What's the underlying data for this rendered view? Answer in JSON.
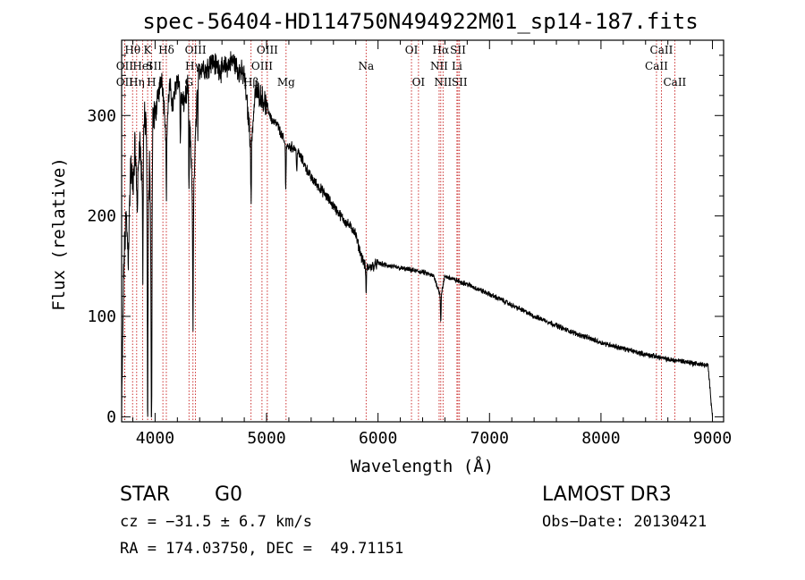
{
  "chart_data": {
    "type": "line",
    "title": "spec-56404-HD114750N494922M01_sp14-187.fits",
    "xlabel": "Wavelength (Å)",
    "ylabel": "Flux (relative)",
    "xlim": [
      3700,
      9100
    ],
    "ylim": [
      -5,
      375
    ],
    "xticks": [
      4000,
      5000,
      6000,
      7000,
      8000,
      9000
    ],
    "yticks": [
      0,
      100,
      200,
      300
    ],
    "xtick_labels": [
      "4000",
      "5000",
      "6000",
      "7000",
      "8000",
      "9000"
    ],
    "ytick_labels": [
      "0",
      "100",
      "200",
      "300"
    ],
    "series": [
      {
        "name": "spectrum",
        "anchors_x": [
          3700,
          3720,
          3740,
          3760,
          3780,
          3800,
          3820,
          3840,
          3860,
          3880,
          3900,
          3920,
          3933,
          3950,
          3968,
          3980,
          4000,
          4030,
          4060,
          4101,
          4130,
          4160,
          4200,
          4250,
          4300,
          4340,
          4380,
          4420,
          4460,
          4500,
          4550,
          4600,
          4650,
          4700,
          4750,
          4800,
          4861,
          4900,
          4950,
          5000,
          5050,
          5100,
          5172,
          5250,
          5300,
          5400,
          5500,
          5600,
          5700,
          5790,
          5850,
          5893,
          5950,
          6000,
          6100,
          6200,
          6300,
          6400,
          6500,
          6563,
          6600,
          6650,
          6700,
          6800,
          6900,
          7000,
          7100,
          7200,
          7300,
          7400,
          7500,
          7600,
          7700,
          7800,
          7900,
          8000,
          8100,
          8200,
          8300,
          8400,
          8500,
          8600,
          8700,
          8800,
          8900,
          8960,
          9000
        ],
        "anchors_y": [
          0,
          150,
          200,
          160,
          250,
          230,
          270,
          210,
          280,
          240,
          290,
          300,
          140,
          260,
          120,
          300,
          300,
          320,
          340,
          280,
          330,
          310,
          340,
          310,
          330,
          200,
          340,
          350,
          345,
          355,
          350,
          345,
          350,
          355,
          345,
          340,
          270,
          325,
          320,
          310,
          295,
          290,
          270,
          268,
          260,
          238,
          225,
          210,
          195,
          185,
          160,
          148,
          150,
          153,
          150,
          148,
          146,
          144,
          140,
          120,
          140,
          138,
          136,
          132,
          127,
          122,
          117,
          111,
          106,
          100,
          96,
          91,
          86,
          82,
          78,
          74,
          71,
          68,
          65,
          62,
          60,
          57,
          56,
          54,
          52,
          51,
          0
        ]
      }
    ],
    "line_markers": [
      {
        "label": "Hθ",
        "wave": 3798,
        "row": 0,
        "dx": 0
      },
      {
        "label": "OII",
        "wave": 3727,
        "row": 1,
        "dx": 0
      },
      {
        "label": "OII",
        "wave": 3727,
        "row": 2,
        "dx": 0
      },
      {
        "label": "Hη",
        "wave": 3835,
        "row": 2,
        "dx": 0
      },
      {
        "label": "HeI",
        "wave": 3889,
        "row": 1,
        "dx": 0
      },
      {
        "label": "K",
        "wave": 3933,
        "row": 0,
        "dx": 0
      },
      {
        "label": "H",
        "wave": 3968,
        "row": 2,
        "dx": 0
      },
      {
        "label": "SII",
        "wave": 4070,
        "row": 1,
        "dx": -10
      },
      {
        "label": "Hδ",
        "wave": 4101,
        "row": 0,
        "dx": 0
      },
      {
        "label": "OIII",
        "wave": 4363,
        "row": 0,
        "dx": 0
      },
      {
        "label": "Hγ",
        "wave": 4340,
        "row": 1,
        "dx": 0
      },
      {
        "label": "G",
        "wave": 4304,
        "row": 2,
        "dx": 0
      },
      {
        "label": "Hβ",
        "wave": 4861,
        "row": 2,
        "dx": 0
      },
      {
        "label": "OIII",
        "wave": 4959,
        "row": 1,
        "dx": 0
      },
      {
        "label": "OIII",
        "wave": 5007,
        "row": 0,
        "dx": 0
      },
      {
        "label": "Mg",
        "wave": 5175,
        "row": 2,
        "dx": 0
      },
      {
        "label": "Na",
        "wave": 5893,
        "row": 1,
        "dx": 0
      },
      {
        "label": "OI",
        "wave": 6300,
        "row": 0,
        "dx": 0
      },
      {
        "label": "OI",
        "wave": 6363,
        "row": 2,
        "dx": 0
      },
      {
        "label": "NII",
        "wave": 6548,
        "row": 1,
        "dx": 0
      },
      {
        "label": "Hα",
        "wave": 6563,
        "row": 0,
        "dx": 0
      },
      {
        "label": "NII",
        "wave": 6583,
        "row": 2,
        "dx": 0
      },
      {
        "label": "SII",
        "wave": 6717,
        "row": 0,
        "dx": 0
      },
      {
        "label": "Li",
        "wave": 6708,
        "row": 1,
        "dx": 0
      },
      {
        "label": "SII",
        "wave": 6731,
        "row": 2,
        "dx": 0
      },
      {
        "label": "CaII",
        "wave": 8542,
        "row": 0,
        "dx": 0
      },
      {
        "label": "CaII",
        "wave": 8498,
        "row": 1,
        "dx": 0
      },
      {
        "label": "CaII",
        "wave": 8662,
        "row": 2,
        "dx": 0
      }
    ]
  },
  "info": {
    "object_class": "STAR",
    "subclass": "G0",
    "survey": "LAMOST DR3",
    "redshift": "cz = −31.5 ± 6.7 km/s",
    "obs_date": "Obs−Date: 20130421",
    "coords": "RA = 174.03750, DEC =  49.71151"
  }
}
